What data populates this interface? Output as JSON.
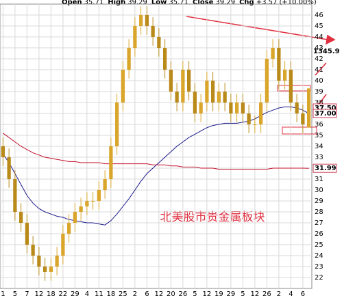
{
  "chart_data": {
    "type": "candlestick",
    "header": [
      {
        "label": "Open",
        "value": "35.71"
      },
      {
        "label": "High",
        "value": "39.29"
      },
      {
        "label": "Low",
        "value": "35.71"
      },
      {
        "label": "Close",
        "value": "39.29"
      },
      {
        "label": "Chg",
        "value": "+3.57 (+10.00%)"
      }
    ],
    "categories": [
      "1",
      null,
      "5",
      null,
      "7",
      null,
      "12",
      null,
      "18",
      null,
      "22",
      null,
      "29",
      null,
      "4",
      null,
      "11",
      null,
      "18",
      null,
      "25",
      null,
      "2",
      null,
      "6",
      null,
      "12",
      null,
      "20",
      null,
      "26",
      null,
      "5",
      null,
      "12",
      null,
      "19",
      null,
      "29",
      null,
      "5",
      null,
      "12",
      null,
      "26",
      null,
      "2",
      null,
      "4",
      null,
      "6",
      null
    ],
    "open": [
      34,
      33,
      31,
      28,
      27,
      25,
      24,
      23,
      22.5,
      23,
      24,
      26,
      27,
      28,
      28.5,
      29,
      29,
      30,
      31,
      34,
      38,
      41,
      43,
      45,
      46,
      45,
      44,
      43,
      41,
      39,
      38,
      41,
      39,
      37,
      38,
      40,
      38,
      39,
      38,
      37,
      38,
      37,
      36,
      36,
      38,
      42,
      43,
      40,
      41,
      38,
      37,
      35.71
    ],
    "high": [
      34.8,
      33.8,
      31.8,
      28.8,
      27.8,
      25.8,
      24.8,
      23.8,
      23.8,
      24.8,
      26.8,
      27.8,
      28.8,
      29.3,
      29.8,
      29.8,
      30.8,
      31.8,
      34.8,
      38.8,
      41.8,
      43.8,
      45.8,
      46.8,
      46.8,
      45.8,
      44.8,
      43.8,
      41.8,
      39.8,
      41.8,
      41.8,
      39.8,
      38.8,
      40.8,
      40.8,
      39.8,
      39.8,
      38.8,
      38.8,
      38.8,
      37.8,
      36.8,
      38.8,
      42.8,
      43.8,
      43.8,
      41.8,
      41.8,
      38.8,
      37.8,
      39.29
    ],
    "low": [
      32.2,
      30.2,
      27.2,
      26.2,
      24.2,
      23.2,
      22.2,
      21.7,
      21.7,
      22.2,
      23.2,
      25.2,
      26.2,
      27.2,
      27.7,
      28.2,
      28.2,
      29.2,
      30.2,
      33.2,
      37.2,
      40.2,
      42.2,
      44.2,
      44.2,
      43.2,
      42.2,
      40.2,
      38.2,
      37.2,
      37.2,
      38.2,
      36.2,
      36.2,
      37.2,
      37.2,
      37.2,
      37.2,
      36.2,
      36.2,
      36.2,
      35.2,
      35.2,
      35.2,
      37.2,
      41.2,
      39.2,
      39.2,
      37.2,
      36.2,
      35.2,
      35.71
    ],
    "close": [
      33,
      31,
      28,
      27,
      25,
      24,
      23,
      22.5,
      23,
      24,
      26,
      27,
      28,
      28.5,
      29,
      29,
      30,
      31,
      34,
      38,
      41,
      43,
      45,
      46,
      45,
      44,
      43,
      41,
      39,
      38,
      41,
      39,
      37,
      38,
      40,
      38,
      39,
      38,
      37,
      38,
      37,
      36,
      36,
      38,
      42,
      43,
      40,
      41,
      38,
      37,
      36,
      39.29
    ],
    "up_color": "#d9a52a",
    "down_color": "#b98a1a",
    "series": [
      {
        "color": "#1a1a8c",
        "values": [
          33.3,
          32.5,
          31.5,
          30.5,
          29.5,
          28.8,
          28.3,
          28,
          27.8,
          27.6,
          27.5,
          27.3,
          27.2,
          27.1,
          27,
          27,
          26.9,
          26.8,
          27.2,
          27.8,
          28.5,
          29.2,
          30,
          30.8,
          31.5,
          32,
          32.5,
          33,
          33.5,
          34,
          34.4,
          34.8,
          35.1,
          35.4,
          35.7,
          35.9,
          36,
          36.1,
          36.1,
          36.1,
          36.2,
          36.3,
          36.5,
          36.8,
          37.1,
          37.3,
          37.5,
          37.6,
          37.6,
          37.5,
          37.3,
          37.0
        ]
      },
      {
        "color": "#c0102a",
        "values": [
          35.2,
          34.8,
          34.4,
          34,
          33.7,
          33.4,
          33.2,
          33,
          32.9,
          32.8,
          32.7,
          32.6,
          32.6,
          32.5,
          32.5,
          32.5,
          32.5,
          32.4,
          32.4,
          32.4,
          32.4,
          32.4,
          32.4,
          32.4,
          32.4,
          32.3,
          32.3,
          32.3,
          32.2,
          32.2,
          32.1,
          32.1,
          32.1,
          32.0,
          32.0,
          32.0,
          31.9,
          31.9,
          31.9,
          31.9,
          31.9,
          31.9,
          31.9,
          31.9,
          31.9,
          32,
          32,
          32,
          32,
          32,
          32,
          31.99
        ]
      }
    ],
    "price_tags": [
      {
        "value": 37.5,
        "label": "37.50"
      },
      {
        "value": 37,
        "label": "37.00"
      },
      {
        "value": 31.99,
        "label": "31.99"
      }
    ],
    "gold_tag": "1345.9",
    "annotation": "北美股市贵金属板块",
    "ylim": [
      21,
      47
    ],
    "yticks": [
      22,
      23,
      24,
      25,
      26,
      27,
      28,
      29,
      30,
      31,
      32,
      33,
      34,
      35,
      36,
      37,
      38,
      39,
      40,
      41,
      42,
      43,
      44,
      45,
      46
    ],
    "grid": true
  }
}
